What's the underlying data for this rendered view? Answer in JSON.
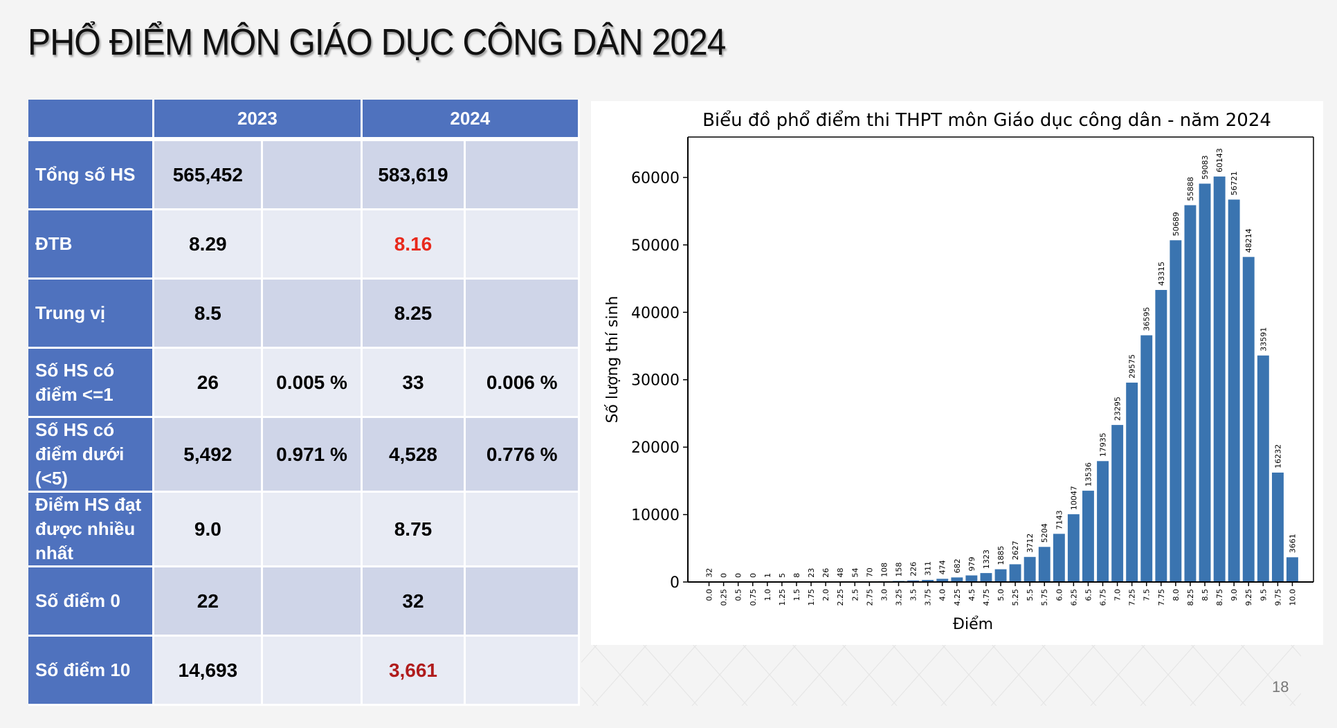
{
  "slide": {
    "title": "PHỔ ĐIỂM MÔN GIÁO DỤC CÔNG DÂN 2024",
    "page_number": "18"
  },
  "table": {
    "headers": [
      "",
      "2023",
      "2024"
    ],
    "rows": [
      {
        "label": "Tổng số HS",
        "v2023": "565,452",
        "p2023": "",
        "v2024": "583,619",
        "p2024": ""
      },
      {
        "label": "ĐTB",
        "v2023": "8.29",
        "p2023": "",
        "v2024": "8.16",
        "p2024": ""
      },
      {
        "label": "Trung vị",
        "v2023": "8.5",
        "p2023": "",
        "v2024": "8.25",
        "p2024": ""
      },
      {
        "label": "Số HS có điểm <=1",
        "v2023": "26",
        "p2023": "0.005 %",
        "v2024": "33",
        "p2024": "0.006 %"
      },
      {
        "label": "Số HS có điểm dưới (<5)",
        "v2023": "5,492",
        "p2023": "0.971 %",
        "v2024": "4,528",
        "p2024": "0.776 %"
      },
      {
        "label": "Điểm HS đạt được nhiều nhất",
        "v2023": "9.0",
        "p2023": "",
        "v2024": "8.75",
        "p2024": ""
      },
      {
        "label": "Số điểm 0",
        "v2023": "22",
        "p2023": "",
        "v2024": "32",
        "p2024": ""
      },
      {
        "label": "Số điểm 10",
        "v2023": "14,693",
        "p2023": "",
        "v2024": "3,661",
        "p2024": ""
      }
    ],
    "colors": {
      "header_bg": "#4f72be",
      "row_odd_bg": "#cfd5e8",
      "row_even_bg": "#e8ebf4",
      "highlight_red": "#e8291c",
      "highlight_darkred": "#b01c1c"
    }
  },
  "chart_data": {
    "type": "bar",
    "title": "Biểu đồ phổ điểm thi THPT môn Giáo dục công dân - năm 2024",
    "xlabel": "Điểm",
    "ylabel": "Số lượng thí sinh",
    "categories": [
      "0.0",
      "0.25",
      "0.5",
      "0.75",
      "1.0",
      "1.25",
      "1.5",
      "1.75",
      "2.0",
      "2.25",
      "2.5",
      "2.75",
      "3.0",
      "3.25",
      "3.5",
      "3.75",
      "4.0",
      "4.25",
      "4.5",
      "4.75",
      "5.0",
      "5.25",
      "5.5",
      "5.75",
      "6.0",
      "6.25",
      "6.5",
      "6.75",
      "7.0",
      "7.25",
      "7.5",
      "7.75",
      "8.0",
      "8.25",
      "8.5",
      "8.75",
      "9.0",
      "9.25",
      "9.5",
      "9.75",
      "10.0"
    ],
    "values": [
      32,
      0,
      0,
      0,
      1,
      5,
      8,
      23,
      26,
      48,
      54,
      70,
      108,
      158,
      226,
      311,
      474,
      682,
      979,
      1323,
      1885,
      2627,
      3712,
      5204,
      7143,
      10047,
      13536,
      17935,
      23295,
      29575,
      36595,
      43315,
      50689,
      55888,
      59083,
      60143,
      56721,
      48214,
      33591,
      16232,
      3661
    ],
    "yticks": [
      0,
      10000,
      20000,
      30000,
      40000,
      50000,
      60000
    ],
    "ylim": [
      0,
      66000
    ],
    "grid": false,
    "legend": null,
    "bar_color": "#3a74b0",
    "data_labels": true
  }
}
